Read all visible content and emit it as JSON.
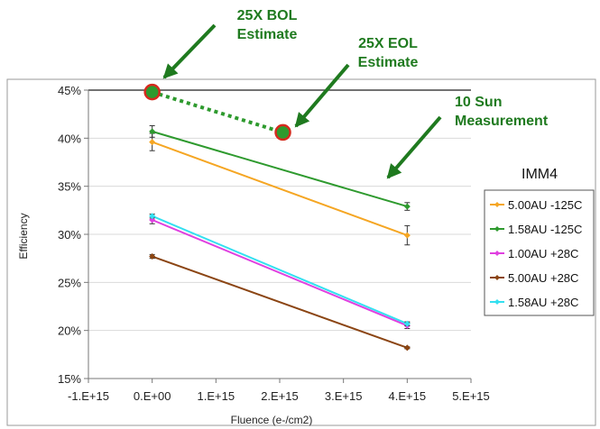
{
  "chart_data": {
    "type": "line",
    "xlabel": "Fluence (e-/cm2)",
    "ylabel": "Efficiency",
    "xlim": [
      -1000000000000000.0,
      5000000000000000.0
    ],
    "ylim": [
      15,
      45
    ],
    "x_ticks": [
      -1000000000000000.0,
      0,
      1000000000000000.0,
      2000000000000000.0,
      3000000000000000.0,
      4000000000000000.0,
      5000000000000000.0
    ],
    "x_tick_labels": [
      "-1.E+15",
      "0.E+00",
      "1.E+15",
      "2.E+15",
      "3.E+15",
      "4.E+15",
      "5.E+15"
    ],
    "y_ticks": [
      15,
      20,
      25,
      30,
      35,
      40,
      45
    ],
    "y_tick_labels": [
      "15%",
      "20%",
      "25%",
      "30%",
      "35%",
      "40%",
      "45%"
    ],
    "grid": "horizontal",
    "legend_title": "IMM4",
    "legend_position": "right",
    "series": [
      {
        "name": "5.00AU -125C",
        "color": "#f5a623",
        "x": [
          0,
          4000000000000000.0
        ],
        "y": [
          39.6,
          29.9
        ],
        "err": [
          0.9,
          1.0
        ]
      },
      {
        "name": "1.58AU -125C",
        "color": "#2e9a2e",
        "x": [
          0,
          4000000000000000.0
        ],
        "y": [
          40.7,
          32.9
        ],
        "err": [
          0.6,
          0.4
        ]
      },
      {
        "name": "1.00AU +28C",
        "color": "#e040e0",
        "x": [
          0,
          4000000000000000.0
        ],
        "y": [
          31.5,
          20.5
        ],
        "err": [
          0.4,
          0.3
        ]
      },
      {
        "name": "5.00AU +28C",
        "color": "#8b4513",
        "x": [
          0,
          4000000000000000.0
        ],
        "y": [
          27.7,
          18.2
        ],
        "err": [
          0.2,
          0.1
        ]
      },
      {
        "name": "1.58AU +28C",
        "color": "#33e0f0",
        "x": [
          0,
          4000000000000000.0
        ],
        "y": [
          31.9,
          20.7
        ],
        "err": [
          0.2,
          0.2
        ]
      }
    ],
    "estimate_points": [
      {
        "x": 0,
        "y": 44.8
      },
      {
        "x": 2050000000000000.0,
        "y": 40.6
      }
    ],
    "estimate_color": "#2e9a2e",
    "annotations": [
      {
        "id": "bol",
        "lines": [
          "25X BOL",
          "Estimate"
        ]
      },
      {
        "id": "eol",
        "lines": [
          "25X EOL",
          "Estimate"
        ]
      },
      {
        "id": "sun",
        "lines": [
          "10 Sun",
          "Measurement"
        ]
      }
    ]
  }
}
